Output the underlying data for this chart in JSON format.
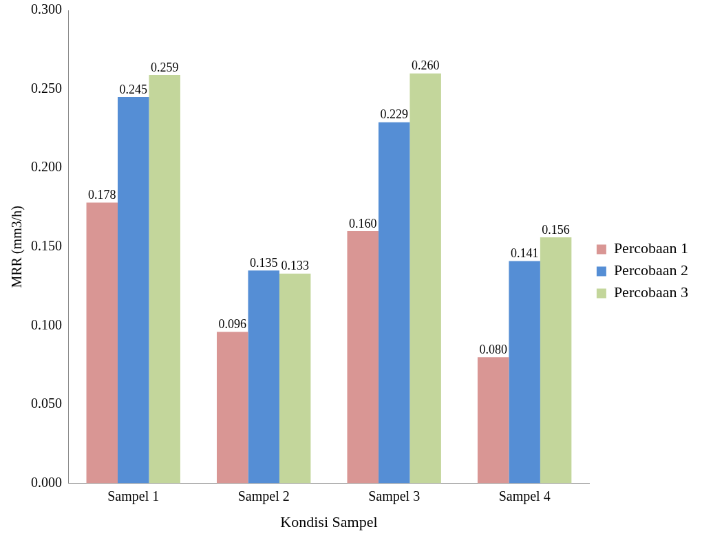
{
  "chart_data": {
    "type": "bar",
    "xlabel": "Kondisi Sampel",
    "ylabel": "MRR (mm3/h)",
    "categories": [
      "Sampel 1",
      "Sampel 2",
      "Sampel 3",
      "Sampel 4"
    ],
    "series": [
      {
        "name": "Percobaan 1",
        "color": "#d99694",
        "values": [
          0.178,
          0.096,
          0.16,
          0.08
        ],
        "value_labels": [
          "0.178",
          "0.096",
          "0.160",
          "0.080"
        ]
      },
      {
        "name": "Percobaan 2",
        "color": "#558ed5",
        "values": [
          0.245,
          0.135,
          0.229,
          0.141
        ],
        "value_labels": [
          "0.245",
          "0.135",
          "0.229",
          "0.141"
        ]
      },
      {
        "name": "Percobaan 3",
        "color": "#c3d69b",
        "values": [
          0.259,
          0.133,
          0.26,
          0.156
        ],
        "value_labels": [
          "0.259",
          "0.133",
          "0.260",
          "0.156"
        ]
      }
    ],
    "ylim": [
      0,
      0.3
    ],
    "yticks": [
      {
        "value": 0,
        "label": "0.000"
      },
      {
        "value": 0.05,
        "label": "0.050"
      },
      {
        "value": 0.1,
        "label": "0.100"
      },
      {
        "value": 0.15,
        "label": "0.150"
      },
      {
        "value": 0.2,
        "label": "0.200"
      },
      {
        "value": 0.25,
        "label": "0.250"
      },
      {
        "value": 0.3,
        "label": "0.300"
      }
    ],
    "grid": false,
    "legend": "right"
  }
}
